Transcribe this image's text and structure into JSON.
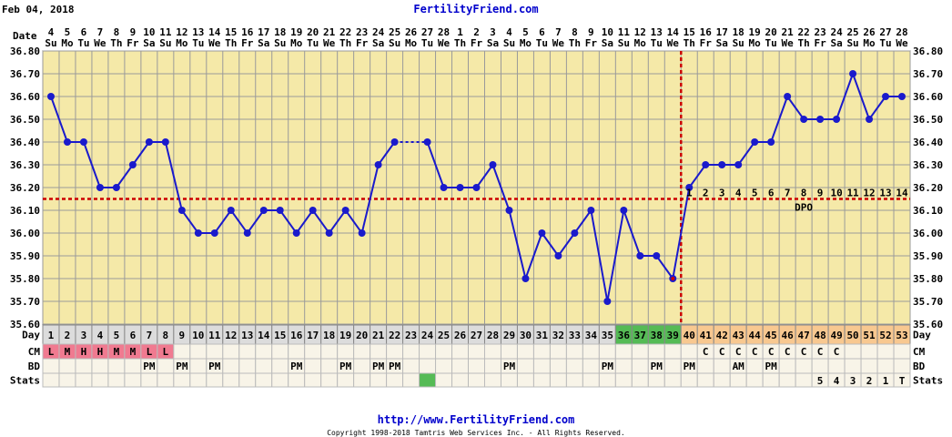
{
  "header": {
    "date": "Feb 04, 2018",
    "site": "FertilityFriend.com"
  },
  "footer": {
    "url": "http://www.FertilityFriend.com",
    "copyright": "Copyright 1998-2018 Tamtris Web Services Inc. - All Rights Reserved."
  },
  "row_labels": {
    "date": "Date",
    "day": "Day",
    "cm": "CM",
    "bd": "BD",
    "stats": "Stats"
  },
  "colors": {
    "plot_bg": "#f5e9a8",
    "grid": "#9a9a9a",
    "line": "#1a1acc",
    "coverline": "#cc0000",
    "ovulation_line": "#cc0000",
    "day_cell_default": "#dcdcdc",
    "day_cell_fertile": "#55bb55",
    "day_cell_luteal": "#f8c890",
    "cm_menstrual": "#f07a90",
    "stats_green": "#55bb55",
    "row_bg": "#f8f4e8"
  },
  "chart_data": {
    "type": "line",
    "title": "",
    "ylabel": "",
    "ylim": [
      35.6,
      36.8
    ],
    "yticks": [
      "35.60",
      "35.70",
      "35.80",
      "35.90",
      "36.00",
      "36.10",
      "36.20",
      "36.30",
      "36.40",
      "36.50",
      "36.60",
      "36.70",
      "36.80"
    ],
    "dates": [
      "4",
      "5",
      "6",
      "7",
      "8",
      "9",
      "10",
      "11",
      "12",
      "13",
      "14",
      "15",
      "16",
      "17",
      "18",
      "19",
      "20",
      "21",
      "22",
      "23",
      "24",
      "25",
      "26",
      "27",
      "28",
      "1",
      "2",
      "3",
      "4",
      "5",
      "6",
      "7",
      "8",
      "9",
      "10",
      "11",
      "12",
      "13",
      "14",
      "15",
      "16",
      "17",
      "18",
      "19",
      "20",
      "21",
      "22",
      "23",
      "24",
      "25",
      "26",
      "27",
      "28"
    ],
    "weekdays": [
      "Su",
      "Mo",
      "Tu",
      "We",
      "Th",
      "Fr",
      "Sa",
      "Su",
      "Mo",
      "Tu",
      "We",
      "Th",
      "Fr",
      "Sa",
      "Su",
      "Mo",
      "Tu",
      "We",
      "Th",
      "Fr",
      "Sa",
      "Su",
      "Mo",
      "Tu",
      "We",
      "Th",
      "Fr",
      "Sa",
      "Su",
      "Mo",
      "Tu",
      "We",
      "Th",
      "Fr",
      "Sa",
      "Su",
      "Mo",
      "Tu",
      "We",
      "Th",
      "Fr",
      "Sa",
      "Su",
      "Mo",
      "Tu",
      "We",
      "Th",
      "Fr",
      "Sa",
      "Su",
      "Mo",
      "Tu",
      "We"
    ],
    "cycle_days": [
      "1",
      "2",
      "3",
      "4",
      "5",
      "6",
      "7",
      "8",
      "9",
      "10",
      "11",
      "12",
      "13",
      "14",
      "15",
      "16",
      "17",
      "18",
      "19",
      "20",
      "21",
      "22",
      "23",
      "24",
      "25",
      "26",
      "27",
      "28",
      "29",
      "30",
      "31",
      "32",
      "33",
      "34",
      "35",
      "36",
      "37",
      "38",
      "39",
      "40",
      "41",
      "42",
      "43",
      "44",
      "45",
      "46",
      "47",
      "48",
      "49",
      "50",
      "51",
      "52",
      "53"
    ],
    "temps": [
      36.6,
      36.4,
      36.4,
      36.2,
      36.2,
      36.3,
      36.4,
      36.4,
      36.1,
      36.0,
      36.0,
      36.1,
      36.0,
      36.1,
      36.1,
      36.0,
      36.1,
      36.0,
      36.1,
      36.0,
      36.3,
      36.4,
      null,
      36.4,
      36.2,
      36.2,
      36.2,
      36.3,
      36.1,
      35.8,
      36.0,
      35.9,
      36.0,
      36.1,
      35.7,
      36.1,
      35.9,
      35.9,
      35.8,
      36.2,
      36.3,
      36.3,
      36.3,
      36.4,
      36.4,
      36.6,
      36.5,
      36.5,
      36.5,
      36.7,
      36.5,
      36.6,
      36.6
    ],
    "coverline": 36.15,
    "ovulation_day": 39,
    "fertile_days": [
      36,
      37,
      38,
      39
    ],
    "dpo": [
      "1",
      "2",
      "3",
      "4",
      "5",
      "6",
      "7",
      "8",
      "9",
      "10",
      "11",
      "12",
      "13",
      "14"
    ],
    "dpo_label": "DPO",
    "cm": {
      "1": "L",
      "2": "M",
      "3": "H",
      "4": "H",
      "5": "M",
      "6": "M",
      "7": "L",
      "8": "L",
      "41": "C",
      "42": "C",
      "43": "C",
      "44": "C",
      "45": "C",
      "46": "C",
      "47": "C",
      "48": "C",
      "49": "C"
    },
    "bd": {
      "7": "PM",
      "9": "PM",
      "11": "PM",
      "16": "PM",
      "19": "PM",
      "21": "PM",
      "22": "PM",
      "29": "PM",
      "35": "PM",
      "38": "PM",
      "40": "PM",
      "43": "AM",
      "45": "PM"
    },
    "stats": {
      "48": "5",
      "49": "4",
      "50": "3",
      "51": "2",
      "52": "1",
      "53": "T"
    },
    "stats_marked_days": [
      24
    ]
  }
}
